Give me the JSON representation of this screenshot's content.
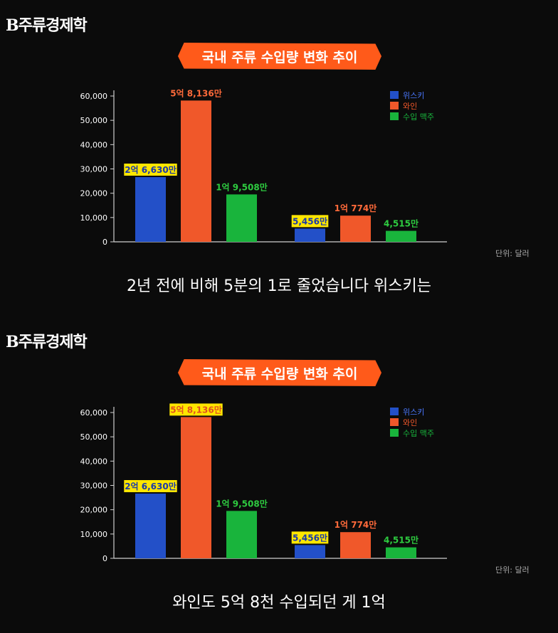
{
  "panels": [
    {
      "logo": "B주류경제학",
      "title": "국내 주류 수입량 변화 추이",
      "unit": "단위: 달러",
      "caption": "2년 전에 비해 5분의 1로 줄었습니다 위스키는",
      "highlighted": [
        "2억 6,630만",
        "5,456만"
      ]
    },
    {
      "logo": "B주류경제학",
      "title": "국내 주류 수입량 변화 추이",
      "unit": "단위: 달러",
      "caption": "와인도 5억 8천 수입되던 게 1억",
      "highlighted": [
        "2억 6,630만",
        "5,456만",
        "5억 8,136만"
      ]
    }
  ],
  "chart_data": {
    "type": "bar",
    "categories": [
      "",
      ""
    ],
    "series": [
      {
        "name": "위스키",
        "color": "#2350c8",
        "values": [
          26630,
          5456
        ],
        "labels": [
          "2억 6,630만",
          "5,456만"
        ]
      },
      {
        "name": "와인",
        "color": "#f0582a",
        "values": [
          58136,
          10774
        ],
        "labels": [
          "5억 8,136만",
          "1억 774만"
        ]
      },
      {
        "name": "수입 맥주",
        "color": "#19b43c",
        "values": [
          19508,
          4515
        ],
        "labels": [
          "1억 9,508만",
          "4,515만"
        ]
      }
    ],
    "yticks": [
      "0",
      "10,000",
      "20,000",
      "30,000",
      "40,000",
      "50,000",
      "60,000"
    ],
    "ylim": [
      0,
      60000
    ],
    "legend": "top-right",
    "label_colors": {
      "위스키": "#ffffff",
      "와인": "#ff6a3a",
      "수입 맥주": "#2ecc40"
    },
    "highlight_color": "#ffe600"
  }
}
